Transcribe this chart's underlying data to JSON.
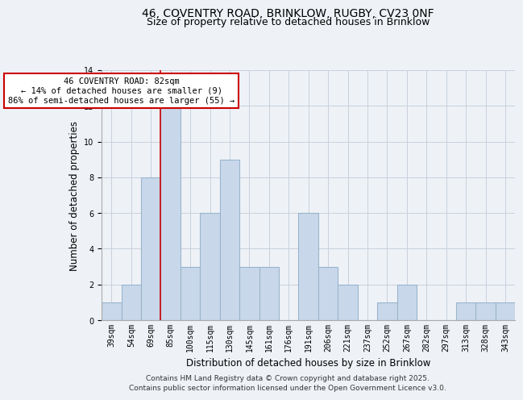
{
  "title": "46, COVENTRY ROAD, BRINKLOW, RUGBY, CV23 0NF",
  "subtitle": "Size of property relative to detached houses in Brinklow",
  "xlabel": "Distribution of detached houses by size in Brinklow",
  "ylabel": "Number of detached properties",
  "bin_labels": [
    "39sqm",
    "54sqm",
    "69sqm",
    "85sqm",
    "100sqm",
    "115sqm",
    "130sqm",
    "145sqm",
    "161sqm",
    "176sqm",
    "191sqm",
    "206sqm",
    "221sqm",
    "237sqm",
    "252sqm",
    "267sqm",
    "282sqm",
    "297sqm",
    "313sqm",
    "328sqm",
    "343sqm"
  ],
  "bar_heights": [
    1,
    2,
    8,
    12,
    3,
    6,
    9,
    3,
    3,
    0,
    6,
    3,
    2,
    0,
    1,
    2,
    0,
    0,
    1,
    1,
    1
  ],
  "bar_color": "#c8d8ea",
  "bar_edge_color": "#9ab4cc",
  "vline_x_index": 3,
  "vline_color": "#cc0000",
  "annotation_text": "46 COVENTRY ROAD: 82sqm\n← 14% of detached houses are smaller (9)\n86% of semi-detached houses are larger (55) →",
  "annotation_box_facecolor": "#ffffff",
  "annotation_box_edgecolor": "#cc0000",
  "ylim": [
    0,
    14
  ],
  "yticks": [
    0,
    2,
    4,
    6,
    8,
    10,
    12,
    14
  ],
  "bg_color": "#eef2f7",
  "plot_bg_color": "#eef2f7",
  "grid_color": "#c8d0dc",
  "title_fontsize": 10,
  "subtitle_fontsize": 9,
  "axis_label_fontsize": 8.5,
  "tick_fontsize": 7,
  "annotation_fontsize": 7.5,
  "footer_fontsize": 6.5,
  "footer_line1": "Contains HM Land Registry data © Crown copyright and database right 2025.",
  "footer_line2": "Contains public sector information licensed under the Open Government Licence v3.0."
}
